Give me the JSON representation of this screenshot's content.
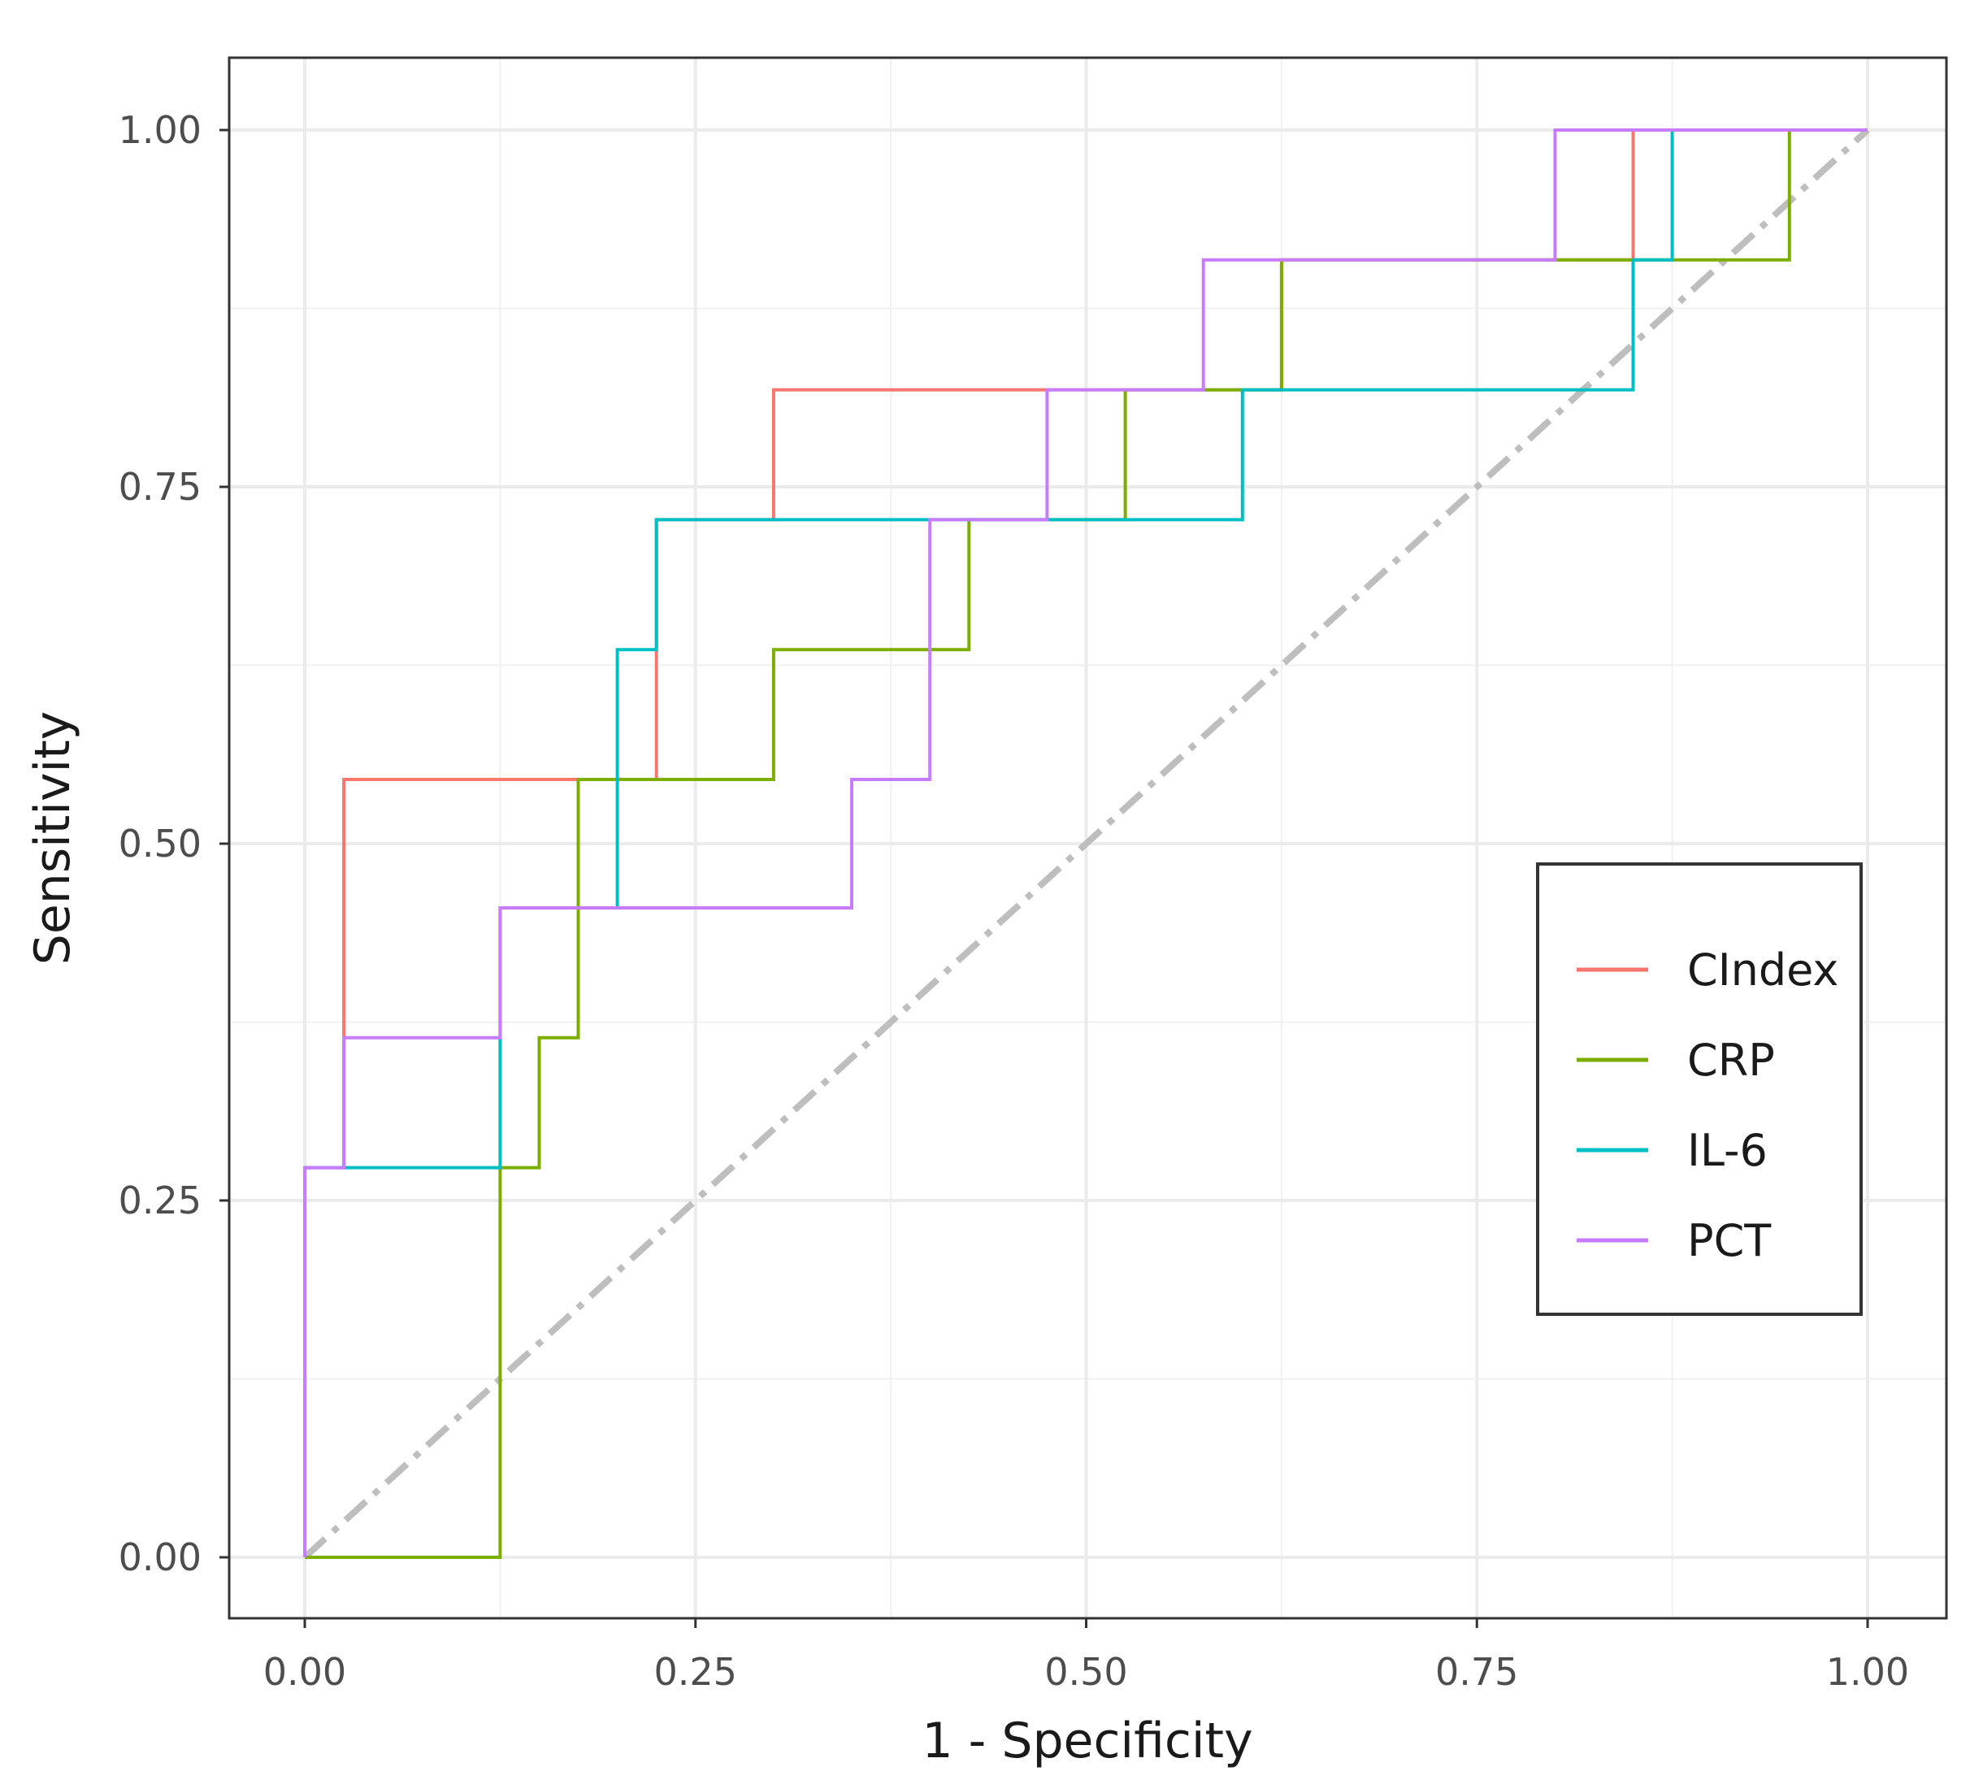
{
  "chart_data": {
    "type": "line",
    "title": "",
    "xlabel": "1 - Specificity",
    "ylabel": "Sensitivity",
    "xlim": [
      -0.05,
      1.05
    ],
    "ylim": [
      -0.05,
      1.05
    ],
    "xticks": [
      0,
      0.25,
      0.5,
      0.75,
      1
    ],
    "yticks": [
      0,
      0.25,
      0.5,
      0.75,
      1
    ],
    "xtick_labels": [
      "0.00",
      "0.25",
      "0.50",
      "0.75",
      "1.00"
    ],
    "ytick_labels": [
      "0.00",
      "0.25",
      "0.50",
      "0.75",
      "1.00"
    ],
    "grid": true,
    "legend_position": "right",
    "diagonal": {
      "x": [
        0,
        1
      ],
      "y": [
        0,
        1
      ],
      "color": "#bebebe",
      "style": "dotdash"
    },
    "series": [
      {
        "name": "CIndex",
        "color": "#F8766D",
        "x": [
          0,
          0,
          0.025,
          0.025,
          0.025,
          0.225,
          0.225,
          0.3,
          0.3,
          0.475,
          0.475,
          0.625,
          0.625,
          0.85,
          0.85,
          1
        ],
        "y": [
          0,
          0.273,
          0.273,
          0.364,
          0.545,
          0.545,
          0.727,
          0.727,
          0.818,
          0.818,
          0.818,
          0.818,
          0.909,
          0.909,
          1,
          1
        ]
      },
      {
        "name": "CRP",
        "color": "#7CAE00",
        "x": [
          0,
          0.125,
          0.125,
          0.15,
          0.15,
          0.175,
          0.175,
          0.3,
          0.3,
          0.425,
          0.425,
          0.525,
          0.525,
          0.625,
          0.625,
          0.95,
          0.95,
          1
        ],
        "y": [
          0,
          0,
          0.273,
          0.273,
          0.364,
          0.364,
          0.545,
          0.545,
          0.636,
          0.636,
          0.727,
          0.727,
          0.818,
          0.818,
          0.909,
          0.909,
          1,
          1
        ]
      },
      {
        "name": "IL-6",
        "color": "#00BFC4",
        "x": [
          0,
          0,
          0.125,
          0.125,
          0.2,
          0.2,
          0.225,
          0.225,
          0.6,
          0.6,
          0.85,
          0.85,
          0.875,
          0.875,
          1
        ],
        "y": [
          0,
          0.273,
          0.273,
          0.455,
          0.455,
          0.636,
          0.636,
          0.727,
          0.727,
          0.818,
          0.818,
          0.909,
          0.909,
          1,
          1
        ]
      },
      {
        "name": "PCT",
        "color": "#C77CFF",
        "x": [
          0,
          0,
          0.025,
          0.025,
          0.125,
          0.125,
          0.35,
          0.35,
          0.4,
          0.4,
          0.475,
          0.475,
          0.575,
          0.575,
          0.8,
          0.8,
          1
        ],
        "y": [
          0,
          0.273,
          0.273,
          0.364,
          0.364,
          0.455,
          0.455,
          0.545,
          0.545,
          0.727,
          0.727,
          0.818,
          0.818,
          0.909,
          0.909,
          1,
          1
        ]
      }
    ]
  }
}
